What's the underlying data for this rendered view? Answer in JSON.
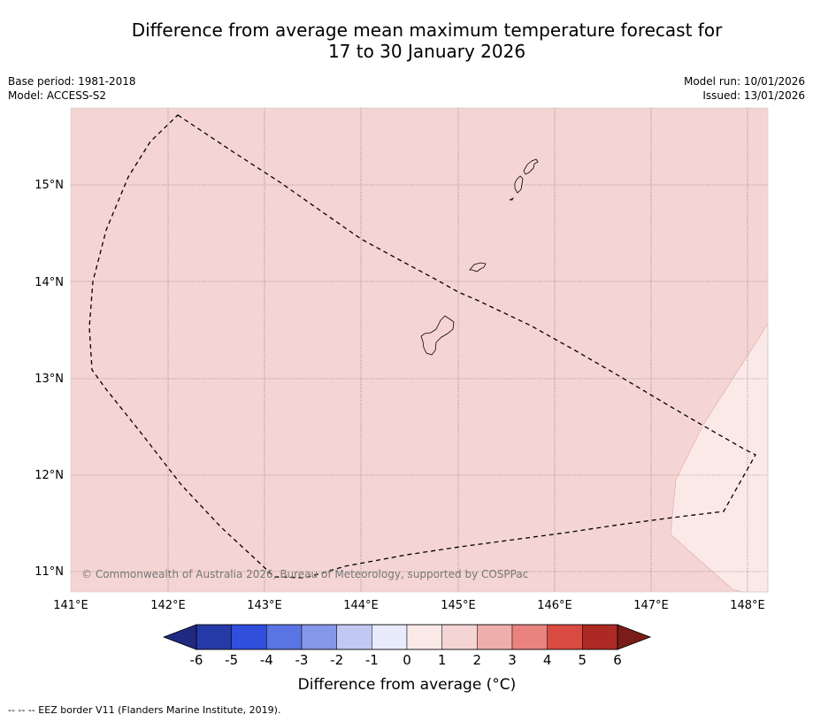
{
  "title": {
    "line1": "Difference from average mean maximum temperature forecast for",
    "line2": "17 to 30 January 2026"
  },
  "meta": {
    "base_period": "Base period: 1981-2018",
    "model": "Model: ACCESS-S2",
    "model_run": "Model run: 10/01/2026",
    "issued": "Issued: 13/01/2026"
  },
  "map": {
    "x_ticks": [
      "141°E",
      "142°E",
      "143°E",
      "144°E",
      "145°E",
      "146°E",
      "147°E",
      "148°E"
    ],
    "y_ticks": [
      "15°N",
      "14°N",
      "13°N",
      "12°N",
      "11°N"
    ],
    "copyright": "© Commonwealth of Australia 2026, Bureau of Meteorology, supported by COSPPac",
    "fill_colors": {
      "main": "#f5d5d3",
      "light": "#fbe9e8"
    }
  },
  "colorbar": {
    "labels": [
      "-6",
      "-5",
      "-4",
      "-3",
      "-2",
      "-1",
      "0",
      "1",
      "2",
      "3",
      "4",
      "5",
      "6"
    ],
    "colors": [
      "#253aa7",
      "#2f4fdc",
      "#5b74e3",
      "#8497e8",
      "#c1c8f3",
      "#e8ebfc",
      "#fbe9e8",
      "#f5d5d3",
      "#eeafac",
      "#e8837f",
      "#d94a43",
      "#ad2a24"
    ],
    "under_color": "#1f2a80",
    "over_color": "#7a1c18",
    "label": "Difference from average (°C)"
  },
  "footnote": "-- -- -- EEZ border V11 (Flanders Marine Institute, 2019)."
}
